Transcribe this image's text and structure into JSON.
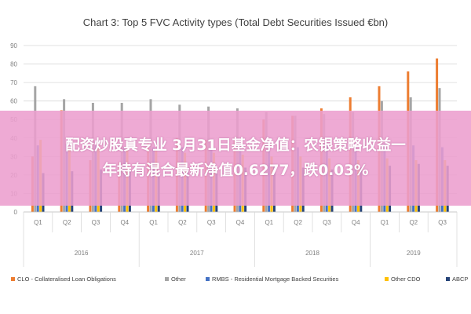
{
  "chart_data": {
    "type": "bar",
    "title": "Chart 3: Top 5 FVC Activity types (Total Debt Securities Issued €bn)",
    "ylim": [
      0,
      90
    ],
    "yticks": [
      0,
      10,
      20,
      30,
      40,
      50,
      60,
      70,
      80,
      90
    ],
    "grid": true,
    "legend_position": "bottom",
    "categories": [
      "Q1",
      "Q2",
      "Q3",
      "Q4",
      "Q1",
      "Q2",
      "Q3",
      "Q4",
      "Q1",
      "Q2",
      "Q3",
      "Q4",
      "Q1",
      "Q2",
      "Q3"
    ],
    "year_groups": [
      {
        "label": "2016",
        "count": 4
      },
      {
        "label": "2017",
        "count": 4
      },
      {
        "label": "2018",
        "count": 4
      },
      {
        "label": "2019",
        "count": 3
      }
    ],
    "series": [
      {
        "name": "CLO - Collateralised Loan Obligations",
        "color": "#ed7d31",
        "values": [
          30,
          55,
          28,
          27,
          38,
          40,
          39,
          40,
          50,
          52,
          56,
          62,
          68,
          76,
          83
        ]
      },
      {
        "name": "Other",
        "color": "#a5a5a5",
        "values": [
          68,
          61,
          59,
          59,
          61,
          58,
          57,
          56,
          54,
          52,
          53,
          54,
          60,
          62,
          67
        ]
      },
      {
        "name": "RMBS - Residential Mortgage Backed Securities",
        "color": "#4472c4",
        "values": [
          36,
          37,
          36,
          35,
          35,
          35,
          35,
          34,
          36,
          35,
          36,
          35,
          37,
          36,
          35
        ]
      },
      {
        "name": "Other CDO",
        "color": "#ffc000",
        "values": [
          39,
          35,
          36,
          35,
          33,
          32,
          32,
          31,
          30,
          30,
          29,
          28,
          29,
          28,
          28
        ]
      },
      {
        "name": "ABCP",
        "color": "#264478",
        "values": [
          21,
          22,
          23,
          22,
          21,
          22,
          23,
          24,
          25,
          24,
          23,
          24,
          25,
          26,
          25
        ]
      }
    ]
  },
  "overlay": {
    "line1": "配资炒股真专业 3月31日基金净值：农银策略收益一",
    "line2": "年持有混合最新净值0.6277，跌0.03%"
  }
}
